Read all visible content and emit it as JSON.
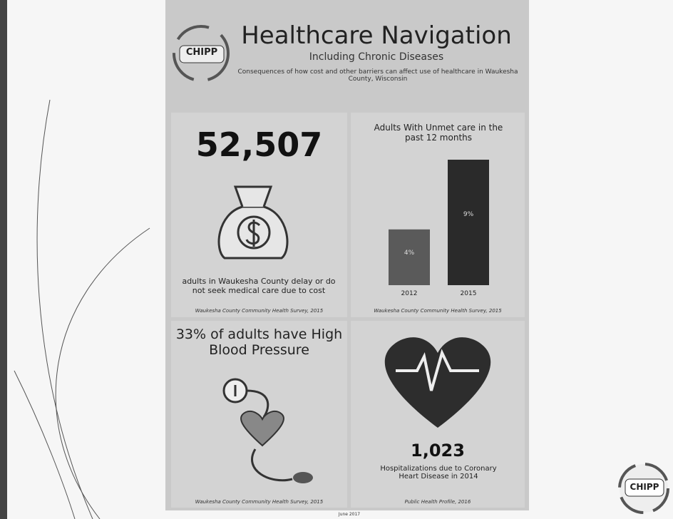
{
  "header": {
    "logo": "CHIPP",
    "title": "Healthcare Navigation",
    "subtitle": "Including Chronic Diseases",
    "description": "Consequences of how cost and other barriers can affect use of healthcare in Waukesha County, Wisconsin"
  },
  "panels": [
    {
      "number": "52,507",
      "text": "adults in Waukesha County delay or do not seek medical care due to cost",
      "source": "Waukesha County Community Health Survey, 2015"
    },
    {
      "title": "Adults With Unmet care in the past 12 months",
      "chart": {
        "type": "bar",
        "categories": [
          "2012",
          "2015"
        ],
        "values": [
          4,
          9
        ],
        "value_labels": [
          "4%",
          "9%"
        ],
        "colors": [
          "#5a5a5a",
          "#2a2a2a"
        ]
      },
      "source": "Waukesha County Community Health Survey, 2015"
    },
    {
      "title": "33% of adults have High Blood Pressure",
      "source": "Waukesha County Community Health Survey, 2015"
    },
    {
      "number": "1,023",
      "text": "Hospitalizations due to Coronary Heart Disease in 2014",
      "source": "Public Health Profile, 2016"
    }
  ],
  "footer": {
    "date": "June 2017",
    "logo": "CHIPP"
  }
}
